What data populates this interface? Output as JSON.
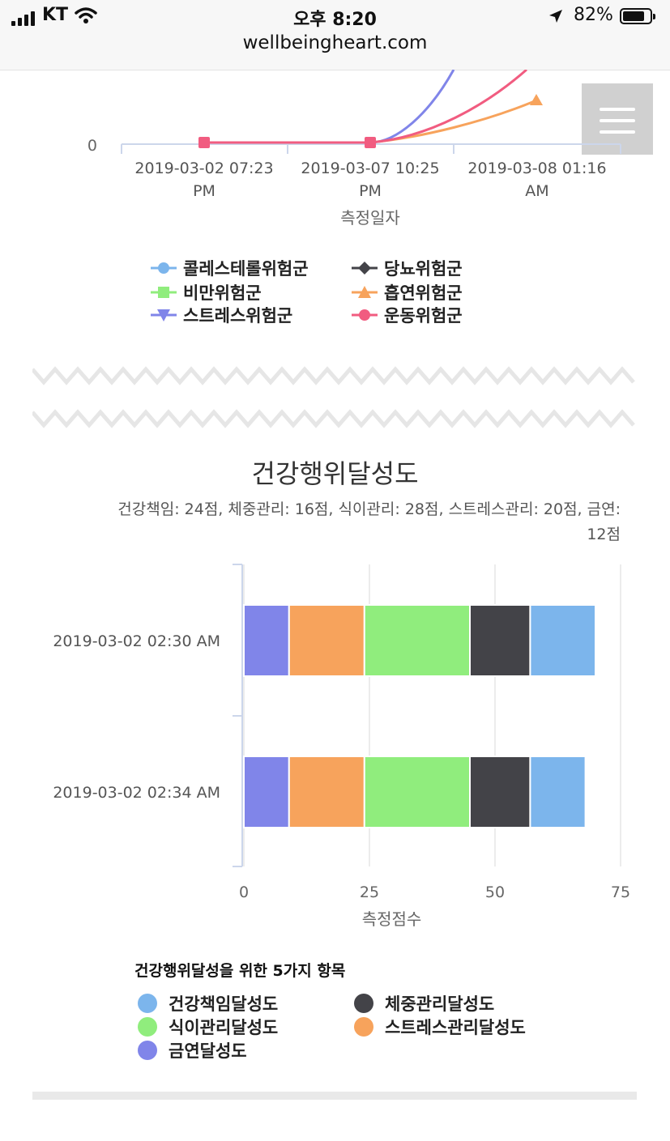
{
  "status_bar": {
    "carrier": "KT",
    "time": "오후 8:20",
    "battery": "82%",
    "battery_level": 0.82,
    "url": "wellbeingheart.com",
    "icons": [
      "signal-icon",
      "wifi-icon",
      "location-arrow-icon",
      "battery-icon"
    ]
  },
  "menu_button": {
    "icon": "hamburger-menu-icon"
  },
  "chart_data": [
    {
      "type": "line",
      "xlabel": "측정일자",
      "x_ticks": [
        [
          "2019-03-02 07:23",
          "PM"
        ],
        [
          "2019-03-07 10:25",
          "PM"
        ],
        [
          "2019-03-08 01:16",
          "AM"
        ]
      ],
      "y_ticks": [
        "0"
      ],
      "legend_position": "bottom",
      "series": [
        {
          "name": "콜레스테롤위험군",
          "color": "#7cb5ec",
          "marker": "circle"
        },
        {
          "name": "당뇨위험군",
          "color": "#434348",
          "marker": "diamond"
        },
        {
          "name": "비만위험군",
          "color": "#90ed7d",
          "marker": "square"
        },
        {
          "name": "흡연위험군",
          "color": "#f7a35c",
          "marker": "triangle"
        },
        {
          "name": "스트레스위험군",
          "color": "#8085e9",
          "marker": "triangle-down"
        },
        {
          "name": "운동위험군",
          "color": "#f15c80",
          "marker": "circle"
        }
      ]
    },
    {
      "type": "bar",
      "stacked": true,
      "orientation": "horizontal",
      "title": "건강행위달성도",
      "subtitle": "건강책임: 24점, 체중관리: 16점, 식이관리: 28점, 스트레스관리: 20점, 금연: 12점",
      "xlabel": "측정점수",
      "xlim": [
        0,
        75
      ],
      "x_ticks": [
        "0",
        "25",
        "50",
        "75"
      ],
      "categories": [
        "2019-03-02 02:30 AM",
        "2019-03-02 02:34 AM"
      ],
      "legend_title": "건강행위달성을 위한 5가지 항목",
      "legend_position": "bottom",
      "series": [
        {
          "name": "금연달성도",
          "color": "#8085e9",
          "values": [
            9,
            9
          ]
        },
        {
          "name": "스트레스관리달성도",
          "color": "#f7a35c",
          "values": [
            15,
            15
          ]
        },
        {
          "name": "식이관리달성도",
          "color": "#90ed7d",
          "values": [
            21,
            21
          ]
        },
        {
          "name": "체중관리달성도",
          "color": "#434348",
          "values": [
            12,
            12
          ]
        },
        {
          "name": "건강책임달성도",
          "color": "#7cb5ec",
          "values": [
            13,
            11
          ]
        }
      ]
    }
  ]
}
